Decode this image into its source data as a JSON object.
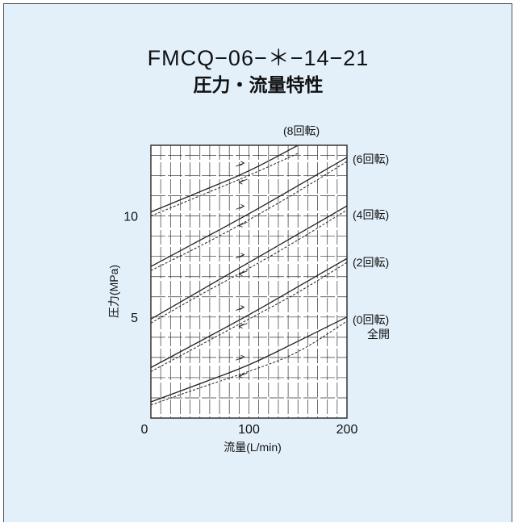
{
  "colors": {
    "background": "#e3f0fa",
    "plot_background": "#ffffff",
    "grid": "#333333",
    "line": "#222222"
  },
  "chart_data": {
    "type": "line",
    "title": "FMCQ−06−＊−14−21",
    "subtitle": "圧力・流量特性",
    "xlabel": "流量(L/min)",
    "ylabel": "圧力(MPa)",
    "xlim": [
      0,
      200
    ],
    "ylim": [
      0,
      13.5
    ],
    "xticks": [
      "0",
      "100",
      "200"
    ],
    "yticks": [
      "5",
      "10"
    ],
    "grid": true,
    "legend": "right",
    "series": [
      {
        "name": "(0回転)",
        "name_line2": "全開",
        "style": "solid",
        "x": [
          0,
          50,
          100,
          150,
          200
        ],
        "y": [
          0.8,
          1.7,
          2.6,
          3.8,
          5.0
        ]
      },
      {
        "name": "",
        "style": "dashed",
        "x": [
          0,
          50,
          100,
          150,
          200
        ],
        "y": [
          0.65,
          1.5,
          2.3,
          3.2,
          4.8
        ]
      },
      {
        "name": "(2回転)",
        "style": "solid",
        "x": [
          0,
          50,
          100,
          150,
          200
        ],
        "y": [
          2.5,
          3.8,
          5.1,
          6.5,
          7.9
        ]
      },
      {
        "name": "",
        "style": "dashed",
        "x": [
          0,
          50,
          100,
          150,
          200
        ],
        "y": [
          2.3,
          3.6,
          4.9,
          6.2,
          7.7
        ]
      },
      {
        "name": "(4回転)",
        "style": "solid",
        "x": [
          0,
          50,
          100,
          150,
          200
        ],
        "y": [
          4.9,
          6.3,
          7.7,
          9.1,
          10.5
        ]
      },
      {
        "name": "",
        "style": "dashed",
        "x": [
          0,
          50,
          100,
          150,
          200
        ],
        "y": [
          4.7,
          6.1,
          7.4,
          8.8,
          10.3
        ]
      },
      {
        "name": "(6回転)",
        "style": "solid",
        "x": [
          0,
          50,
          100,
          150,
          200
        ],
        "y": [
          7.5,
          8.8,
          10.1,
          11.5,
          12.9
        ]
      },
      {
        "name": "",
        "style": "dashed",
        "x": [
          0,
          50,
          100,
          150,
          200
        ],
        "y": [
          7.3,
          8.5,
          9.8,
          11.2,
          12.7
        ]
      },
      {
        "name": "(8回転)",
        "style": "solid",
        "x": [
          0,
          50,
          100,
          150
        ],
        "y": [
          10.2,
          11.2,
          12.2,
          13.5
        ]
      },
      {
        "name": "",
        "style": "dashed",
        "x": [
          0,
          50,
          100,
          150
        ],
        "y": [
          10.0,
          11.0,
          12.0,
          13.1
        ]
      }
    ]
  }
}
